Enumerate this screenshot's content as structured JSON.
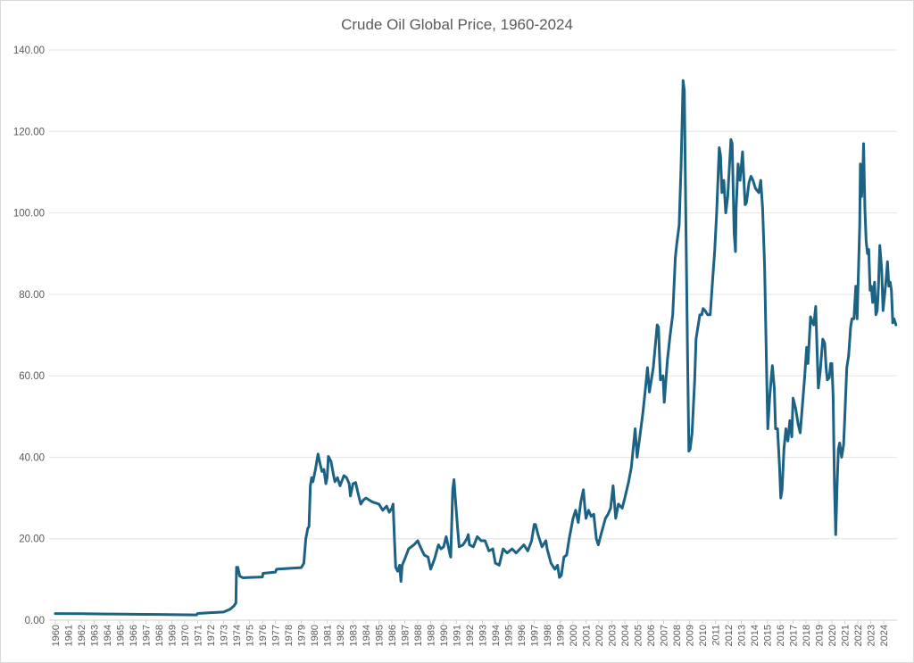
{
  "chart_data": {
    "type": "line",
    "title": "Crude Oil Global Price, 1960-2024",
    "xlabel": "",
    "ylabel": "",
    "ylim": [
      0,
      140
    ],
    "xlim": [
      1960,
      2025
    ],
    "grid": true,
    "legend": "none",
    "line_color": "#1b6284",
    "y_ticks": [
      "0.00",
      "20.00",
      "40.00",
      "60.00",
      "80.00",
      "100.00",
      "120.00",
      "140.00"
    ],
    "x_ticks": [
      "1960",
      "1961",
      "1962",
      "1963",
      "1964",
      "1965",
      "1966",
      "1967",
      "1968",
      "1969",
      "1970",
      "1971",
      "1972",
      "1973",
      "1974",
      "1975",
      "1976",
      "1977",
      "1978",
      "1979",
      "1980",
      "1981",
      "1982",
      "1983",
      "1984",
      "1985",
      "1986",
      "1987",
      "1988",
      "1989",
      "1990",
      "1991",
      "1992",
      "1993",
      "1994",
      "1995",
      "1996",
      "1997",
      "1998",
      "1999",
      "2000",
      "2001",
      "2002",
      "2003",
      "2004",
      "2005",
      "2006",
      "2007",
      "2008",
      "2009",
      "2010",
      "2011",
      "2012",
      "2013",
      "2014",
      "2015",
      "2016",
      "2017",
      "2018",
      "2019",
      "2020",
      "2021",
      "2022",
      "2023",
      "2024"
    ],
    "series": [
      {
        "points": [
          [
            1960.0,
            1.63
          ],
          [
            1962.0,
            1.59
          ],
          [
            1964.0,
            1.52
          ],
          [
            1966.0,
            1.45
          ],
          [
            1968.0,
            1.4
          ],
          [
            1970.9,
            1.3
          ],
          [
            1971.0,
            1.65
          ],
          [
            1972.0,
            1.85
          ],
          [
            1973.0,
            2.0
          ],
          [
            1973.5,
            2.7
          ],
          [
            1973.8,
            3.5
          ],
          [
            1973.95,
            4.2
          ],
          [
            1974.0,
            13.0
          ],
          [
            1974.1,
            13.0
          ],
          [
            1974.25,
            10.8
          ],
          [
            1974.5,
            10.4
          ],
          [
            1975.0,
            10.5
          ],
          [
            1976.0,
            10.6
          ],
          [
            1976.05,
            11.5
          ],
          [
            1977.0,
            11.8
          ],
          [
            1977.1,
            12.5
          ],
          [
            1978.0,
            12.7
          ],
          [
            1979.0,
            12.9
          ],
          [
            1979.2,
            14
          ],
          [
            1979.35,
            20
          ],
          [
            1979.5,
            22.5
          ],
          [
            1979.6,
            23
          ],
          [
            1979.7,
            33
          ],
          [
            1979.8,
            35
          ],
          [
            1979.9,
            34
          ],
          [
            1980.1,
            37
          ],
          [
            1980.3,
            40.8
          ],
          [
            1980.45,
            38.5
          ],
          [
            1980.6,
            36.5
          ],
          [
            1980.75,
            37
          ],
          [
            1980.9,
            33.5
          ],
          [
            1981.0,
            35
          ],
          [
            1981.1,
            40.2
          ],
          [
            1981.3,
            39
          ],
          [
            1981.5,
            35.5
          ],
          [
            1981.6,
            34
          ],
          [
            1981.8,
            35
          ],
          [
            1982.0,
            33
          ],
          [
            1982.3,
            35.5
          ],
          [
            1982.5,
            35
          ],
          [
            1982.7,
            33.5
          ],
          [
            1982.8,
            30.5
          ],
          [
            1983.0,
            33.5
          ],
          [
            1983.2,
            33.8
          ],
          [
            1983.4,
            31
          ],
          [
            1983.6,
            28.5
          ],
          [
            1983.8,
            29.5
          ],
          [
            1984.0,
            30
          ],
          [
            1984.5,
            29
          ],
          [
            1985.0,
            28.5
          ],
          [
            1985.3,
            27
          ],
          [
            1985.6,
            28
          ],
          [
            1985.8,
            26.5
          ],
          [
            1986.0,
            27.5
          ],
          [
            1986.1,
            28.5
          ],
          [
            1986.2,
            20
          ],
          [
            1986.3,
            13
          ],
          [
            1986.45,
            12
          ],
          [
            1986.6,
            13.5
          ],
          [
            1986.7,
            9.5
          ],
          [
            1986.8,
            13.5
          ],
          [
            1987.0,
            15
          ],
          [
            1987.3,
            17.5
          ],
          [
            1987.7,
            18.5
          ],
          [
            1988.0,
            19.5
          ],
          [
            1988.2,
            18
          ],
          [
            1988.5,
            16
          ],
          [
            1988.8,
            15.5
          ],
          [
            1989.0,
            12.5
          ],
          [
            1989.3,
            15
          ],
          [
            1989.6,
            18.5
          ],
          [
            1989.8,
            17.5
          ],
          [
            1990.0,
            18
          ],
          [
            1990.2,
            20.5
          ],
          [
            1990.5,
            16
          ],
          [
            1990.55,
            15.5
          ],
          [
            1990.7,
            32
          ],
          [
            1990.8,
            34.5
          ],
          [
            1990.95,
            28
          ],
          [
            1991.1,
            22
          ],
          [
            1991.2,
            18
          ],
          [
            1991.5,
            18.5
          ],
          [
            1991.8,
            20
          ],
          [
            1991.9,
            21
          ],
          [
            1992.0,
            18.5
          ],
          [
            1992.3,
            18
          ],
          [
            1992.6,
            20.5
          ],
          [
            1992.9,
            19.5
          ],
          [
            1993.2,
            19.5
          ],
          [
            1993.5,
            17
          ],
          [
            1993.8,
            17.5
          ],
          [
            1994.0,
            14
          ],
          [
            1994.3,
            13.5
          ],
          [
            1994.6,
            17.5
          ],
          [
            1994.9,
            16.5
          ],
          [
            1995.3,
            17.5
          ],
          [
            1995.6,
            16.5
          ],
          [
            1995.9,
            17.5
          ],
          [
            1996.2,
            18.5
          ],
          [
            1996.5,
            17
          ],
          [
            1996.8,
            19.5
          ],
          [
            1997.0,
            23.5
          ],
          [
            1997.1,
            23.5
          ],
          [
            1997.3,
            21
          ],
          [
            1997.6,
            18
          ],
          [
            1997.9,
            19.5
          ],
          [
            1998.0,
            17.5
          ],
          [
            1998.3,
            14
          ],
          [
            1998.6,
            12.5
          ],
          [
            1998.8,
            13.5
          ],
          [
            1998.95,
            10.5
          ],
          [
            1999.1,
            11
          ],
          [
            1999.3,
            15.5
          ],
          [
            1999.5,
            16
          ],
          [
            1999.7,
            20
          ],
          [
            2000.0,
            25
          ],
          [
            2000.2,
            27
          ],
          [
            2000.4,
            24
          ],
          [
            2000.6,
            29
          ],
          [
            2000.8,
            32
          ],
          [
            2000.9,
            28
          ],
          [
            2001.0,
            25
          ],
          [
            2001.2,
            27
          ],
          [
            2001.4,
            25.5
          ],
          [
            2001.6,
            26
          ],
          [
            2001.8,
            20
          ],
          [
            2001.95,
            18.5
          ],
          [
            2002.2,
            21.5
          ],
          [
            2002.5,
            25
          ],
          [
            2002.7,
            26
          ],
          [
            2002.9,
            27.5
          ],
          [
            2003.1,
            33
          ],
          [
            2003.3,
            25
          ],
          [
            2003.5,
            28.5
          ],
          [
            2003.8,
            27.5
          ],
          [
            2004.0,
            30
          ],
          [
            2004.3,
            34
          ],
          [
            2004.5,
            37.5
          ],
          [
            2004.8,
            47
          ],
          [
            2004.95,
            40
          ],
          [
            2005.2,
            46
          ],
          [
            2005.4,
            51
          ],
          [
            2005.6,
            57
          ],
          [
            2005.75,
            62
          ],
          [
            2005.9,
            56
          ],
          [
            2006.0,
            58
          ],
          [
            2006.2,
            62
          ],
          [
            2006.5,
            72.5
          ],
          [
            2006.6,
            72
          ],
          [
            2006.75,
            59
          ],
          [
            2006.95,
            60
          ],
          [
            2007.05,
            53.5
          ],
          [
            2007.3,
            64
          ],
          [
            2007.5,
            70
          ],
          [
            2007.7,
            75
          ],
          [
            2007.9,
            89
          ],
          [
            2008.0,
            92
          ],
          [
            2008.2,
            97
          ],
          [
            2008.35,
            112
          ],
          [
            2008.5,
            132.5
          ],
          [
            2008.6,
            130
          ],
          [
            2008.7,
            102
          ],
          [
            2008.85,
            65
          ],
          [
            2008.95,
            41.5
          ],
          [
            2009.05,
            42
          ],
          [
            2009.2,
            46
          ],
          [
            2009.4,
            59
          ],
          [
            2009.5,
            69
          ],
          [
            2009.6,
            71
          ],
          [
            2009.8,
            75
          ],
          [
            2009.95,
            75
          ],
          [
            2010.05,
            76.5
          ],
          [
            2010.2,
            76
          ],
          [
            2010.4,
            75
          ],
          [
            2010.6,
            75
          ],
          [
            2010.75,
            82
          ],
          [
            2010.95,
            91
          ],
          [
            2011.1,
            100
          ],
          [
            2011.3,
            116
          ],
          [
            2011.4,
            114
          ],
          [
            2011.5,
            105
          ],
          [
            2011.65,
            108
          ],
          [
            2011.8,
            100
          ],
          [
            2011.95,
            104
          ],
          [
            2012.2,
            118
          ],
          [
            2012.3,
            117
          ],
          [
            2012.45,
            95
          ],
          [
            2012.55,
            90.5
          ],
          [
            2012.6,
            101
          ],
          [
            2012.75,
            112
          ],
          [
            2012.9,
            108
          ],
          [
            2013.1,
            115
          ],
          [
            2013.3,
            102
          ],
          [
            2013.4,
            102.5
          ],
          [
            2013.6,
            107.5
          ],
          [
            2013.75,
            109
          ],
          [
            2013.9,
            108
          ],
          [
            2014.1,
            106
          ],
          [
            2014.35,
            105
          ],
          [
            2014.5,
            108
          ],
          [
            2014.65,
            101
          ],
          [
            2014.8,
            87
          ],
          [
            2014.95,
            62
          ],
          [
            2015.05,
            47
          ],
          [
            2015.2,
            55
          ],
          [
            2015.4,
            62.5
          ],
          [
            2015.55,
            57
          ],
          [
            2015.65,
            47
          ],
          [
            2015.8,
            47
          ],
          [
            2015.95,
            38
          ],
          [
            2016.05,
            30
          ],
          [
            2016.15,
            32
          ],
          [
            2016.3,
            42
          ],
          [
            2016.45,
            47
          ],
          [
            2016.6,
            44
          ],
          [
            2016.75,
            49
          ],
          [
            2016.9,
            45
          ],
          [
            2017.0,
            54.5
          ],
          [
            2017.2,
            52
          ],
          [
            2017.4,
            48
          ],
          [
            2017.55,
            46
          ],
          [
            2017.7,
            52
          ],
          [
            2017.9,
            60
          ],
          [
            2018.05,
            67
          ],
          [
            2018.15,
            63
          ],
          [
            2018.35,
            74.5
          ],
          [
            2018.5,
            73
          ],
          [
            2018.6,
            72.5
          ],
          [
            2018.75,
            77
          ],
          [
            2018.85,
            67
          ],
          [
            2018.95,
            57
          ],
          [
            2019.1,
            61
          ],
          [
            2019.3,
            69
          ],
          [
            2019.45,
            68
          ],
          [
            2019.55,
            62
          ],
          [
            2019.65,
            59
          ],
          [
            2019.8,
            59.5
          ],
          [
            2019.9,
            63
          ],
          [
            2020.0,
            63
          ],
          [
            2020.1,
            55
          ],
          [
            2020.2,
            33
          ],
          [
            2020.3,
            21
          ],
          [
            2020.4,
            33
          ],
          [
            2020.5,
            42
          ],
          [
            2020.6,
            43.5
          ],
          [
            2020.75,
            40
          ],
          [
            2020.9,
            43
          ],
          [
            2021.0,
            50
          ],
          [
            2021.15,
            62
          ],
          [
            2021.3,
            65
          ],
          [
            2021.45,
            72
          ],
          [
            2021.55,
            74
          ],
          [
            2021.7,
            74
          ],
          [
            2021.85,
            82
          ],
          [
            2021.95,
            74
          ],
          [
            2022.05,
            85
          ],
          [
            2022.15,
            97
          ],
          [
            2022.2,
            112
          ],
          [
            2022.3,
            104
          ],
          [
            2022.4,
            111
          ],
          [
            2022.45,
            117
          ],
          [
            2022.55,
            101
          ],
          [
            2022.65,
            93
          ],
          [
            2022.75,
            90
          ],
          [
            2022.85,
            91
          ],
          [
            2022.95,
            81
          ],
          [
            2023.05,
            82
          ],
          [
            2023.15,
            78
          ],
          [
            2023.3,
            83
          ],
          [
            2023.4,
            75
          ],
          [
            2023.5,
            76
          ],
          [
            2023.6,
            82
          ],
          [
            2023.7,
            92
          ],
          [
            2023.85,
            86
          ],
          [
            2023.95,
            76
          ],
          [
            2024.05,
            79
          ],
          [
            2024.2,
            84
          ],
          [
            2024.3,
            88
          ],
          [
            2024.4,
            82
          ],
          [
            2024.5,
            83
          ],
          [
            2024.6,
            81
          ],
          [
            2024.7,
            73
          ],
          [
            2024.8,
            74
          ],
          [
            2024.95,
            72.5
          ]
        ]
      }
    ]
  }
}
